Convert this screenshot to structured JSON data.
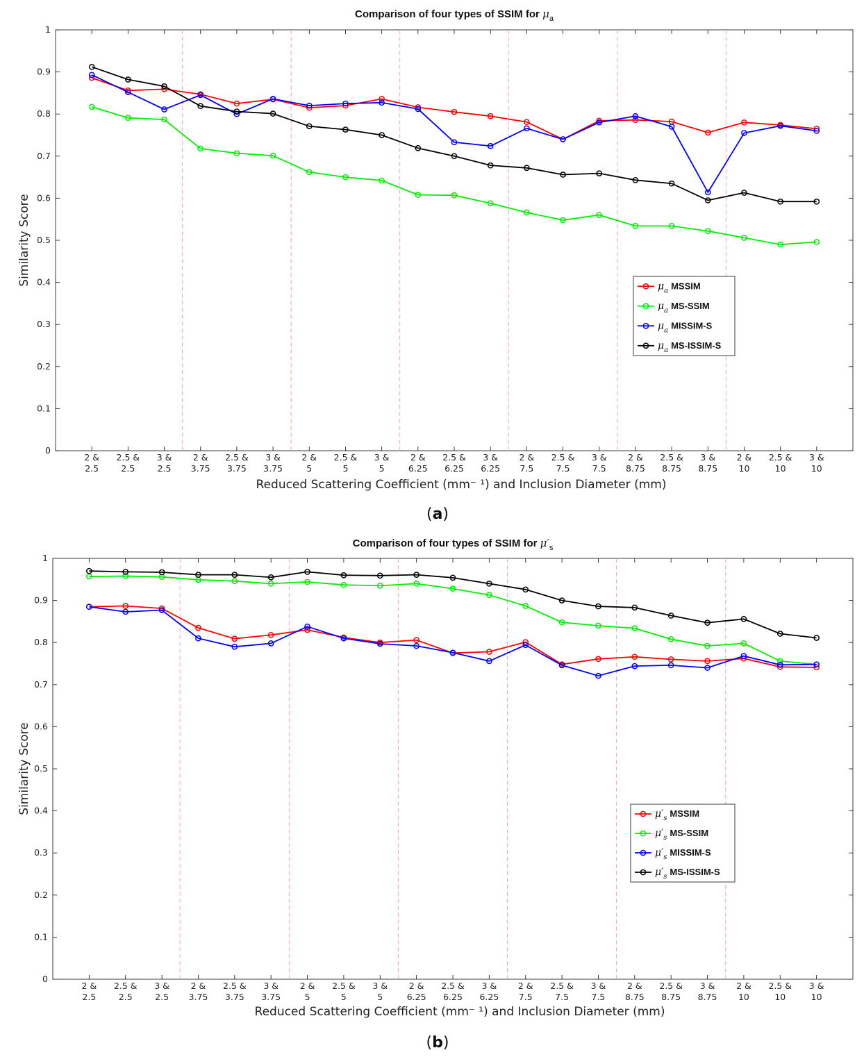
{
  "chart_data": [
    {
      "type": "line",
      "panel_label": "(a)",
      "title": "Comparison of four types of SSIM for μa",
      "title_main": "Comparison of four types of SSIM for ",
      "title_symbol": "μ",
      "title_sub": "a",
      "xlabel": "Reduced Scattering Coefficient (mm⁻ ¹) and Inclusion Diameter (mm)",
      "ylabel": "Similarity Score",
      "ylim": [
        0,
        1
      ],
      "yticks": [
        "0",
        "0.1",
        "0.2",
        "0.3",
        "0.4",
        "0.5",
        "0.6",
        "0.7",
        "0.8",
        "0.9",
        "1"
      ],
      "categories": [
        [
          "2 &",
          "2.5"
        ],
        [
          "2.5 &",
          "2.5"
        ],
        [
          "3 &",
          "2.5"
        ],
        [
          "2 &",
          "3.75"
        ],
        [
          "2.5 &",
          "3.75"
        ],
        [
          "3 &",
          "3.75"
        ],
        [
          "2 &",
          "5"
        ],
        [
          "2.5 &",
          "5"
        ],
        [
          "3 &",
          "5"
        ],
        [
          "2 &",
          "6.25"
        ],
        [
          "2.5 &",
          "6.25"
        ],
        [
          "3 &",
          "6.25"
        ],
        [
          "2 &",
          "7.5"
        ],
        [
          "2.5 &",
          "7.5"
        ],
        [
          "3 &",
          "7.5"
        ],
        [
          "2 &",
          "8.75"
        ],
        [
          "2.5 &",
          "8.75"
        ],
        [
          "3 &",
          "8.75"
        ],
        [
          "2 &",
          "10"
        ],
        [
          "2.5 &",
          "10"
        ],
        [
          "3 &",
          "10"
        ]
      ],
      "legend_symbol": "μ",
      "legend_sub": "a",
      "legend_position": "right-center",
      "series": [
        {
          "name": "MSSIM",
          "color": "#ff0000",
          "values": [
            0.886,
            0.856,
            0.859,
            0.847,
            0.825,
            0.835,
            0.815,
            0.82,
            0.836,
            0.816,
            0.805,
            0.795,
            0.781,
            0.74,
            0.784,
            0.786,
            0.782,
            0.756,
            0.78,
            0.774,
            0.765
          ]
        },
        {
          "name": "MS-SSIM",
          "color": "#00ee00",
          "values": [
            0.817,
            0.791,
            0.787,
            0.718,
            0.707,
            0.701,
            0.662,
            0.65,
            0.642,
            0.608,
            0.607,
            0.588,
            0.566,
            0.548,
            0.56,
            0.534,
            0.534,
            0.522,
            0.506,
            0.49,
            0.496
          ]
        },
        {
          "name": "MISSIM-S",
          "color": "#0000ff",
          "values": [
            0.893,
            0.852,
            0.811,
            0.845,
            0.8,
            0.836,
            0.82,
            0.825,
            0.827,
            0.812,
            0.733,
            0.724,
            0.766,
            0.74,
            0.78,
            0.795,
            0.77,
            0.614,
            0.755,
            0.772,
            0.76
          ]
        },
        {
          "name": "MS-ISSIM-S",
          "color": "#000000",
          "values": [
            0.912,
            0.882,
            0.866,
            0.819,
            0.806,
            0.801,
            0.771,
            0.763,
            0.75,
            0.719,
            0.7,
            0.678,
            0.672,
            0.656,
            0.659,
            0.643,
            0.635,
            0.595,
            0.613,
            0.592,
            0.592
          ]
        }
      ]
    },
    {
      "type": "line",
      "panel_label": "(b)",
      "title": "Comparison of four types of SSIM for μ′s",
      "title_main": "Comparison of four types of SSIM for ",
      "title_symbol": "μ′",
      "title_sub": "s",
      "xlabel": "Reduced Scattering Coefficient (mm⁻ ¹) and Inclusion Diameter (mm)",
      "ylabel": "Similarity Score",
      "ylim": [
        0,
        1
      ],
      "yticks": [
        "0",
        "0.1",
        "0.2",
        "0.3",
        "0.4",
        "0.5",
        "0.6",
        "0.7",
        "0.8",
        "0.9",
        "1"
      ],
      "categories": [
        [
          "2 &",
          "2.5"
        ],
        [
          "2.5 &",
          "2.5"
        ],
        [
          "3 &",
          "2.5"
        ],
        [
          "2 &",
          "3.75"
        ],
        [
          "2.5 &",
          "3.75"
        ],
        [
          "3 &",
          "3.75"
        ],
        [
          "2 &",
          "5"
        ],
        [
          "2.5 &",
          "5"
        ],
        [
          "3 &",
          "5"
        ],
        [
          "2 &",
          "6.25"
        ],
        [
          "2.5 &",
          "6.25"
        ],
        [
          "3 &",
          "6.25"
        ],
        [
          "2 &",
          "7.5"
        ],
        [
          "2.5 &",
          "7.5"
        ],
        [
          "3 &",
          "7.5"
        ],
        [
          "2 &",
          "8.75"
        ],
        [
          "2.5 &",
          "8.75"
        ],
        [
          "3 &",
          "8.75"
        ],
        [
          "2 &",
          "10"
        ],
        [
          "2.5 &",
          "10"
        ],
        [
          "3 &",
          "10"
        ]
      ],
      "legend_symbol": "μ′",
      "legend_sub": "s",
      "legend_position": "right-center",
      "series": [
        {
          "name": "MSSIM",
          "color": "#ff0000",
          "values": [
            0.885,
            0.887,
            0.881,
            0.835,
            0.809,
            0.818,
            0.83,
            0.812,
            0.8,
            0.806,
            0.775,
            0.778,
            0.801,
            0.748,
            0.761,
            0.766,
            0.76,
            0.756,
            0.762,
            0.742,
            0.741
          ]
        },
        {
          "name": "MS-SSIM",
          "color": "#00ee00",
          "values": [
            0.957,
            0.958,
            0.956,
            0.949,
            0.946,
            0.94,
            0.944,
            0.937,
            0.935,
            0.94,
            0.928,
            0.913,
            0.887,
            0.848,
            0.84,
            0.834,
            0.808,
            0.792,
            0.798,
            0.756,
            0.748
          ]
        },
        {
          "name": "MISSIM-S",
          "color": "#0000ff",
          "values": [
            0.885,
            0.873,
            0.877,
            0.81,
            0.79,
            0.798,
            0.838,
            0.81,
            0.797,
            0.792,
            0.776,
            0.756,
            0.794,
            0.746,
            0.721,
            0.744,
            0.746,
            0.74,
            0.768,
            0.747,
            0.748
          ]
        },
        {
          "name": "MS-ISSIM-S",
          "color": "#000000",
          "values": [
            0.97,
            0.968,
            0.967,
            0.961,
            0.961,
            0.955,
            0.968,
            0.96,
            0.959,
            0.961,
            0.954,
            0.94,
            0.926,
            0.9,
            0.886,
            0.883,
            0.864,
            0.847,
            0.856,
            0.821,
            0.811
          ]
        }
      ]
    }
  ]
}
